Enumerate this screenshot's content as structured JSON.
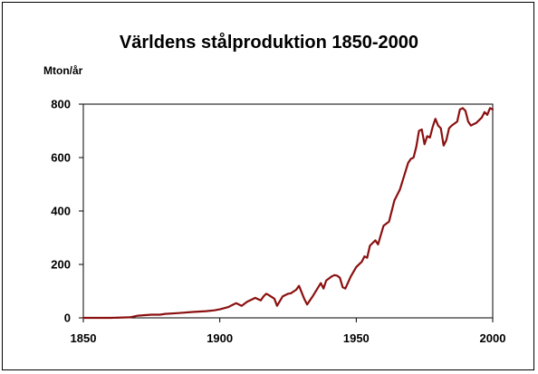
{
  "chart_data": {
    "type": "line",
    "title": "Världens stålproduktion 1850-2000",
    "xlabel": "",
    "ylabel": "Mton/år",
    "xlim": [
      1850,
      2000
    ],
    "ylim": [
      0,
      800
    ],
    "x_ticks": [
      "1850",
      "1900",
      "1950",
      "2000"
    ],
    "y_ticks": [
      "0",
      "200",
      "400",
      "600",
      "800"
    ],
    "grid": false,
    "legend": "none",
    "line_color": "#8b1010",
    "series": [
      {
        "x": [
          1850,
          1860,
          1867,
          1870,
          1872,
          1875,
          1878,
          1880,
          1885,
          1890,
          1895,
          1898,
          1900,
          1903,
          1905,
          1906,
          1908,
          1910,
          1912,
          1913,
          1915,
          1916,
          1917,
          1918,
          1920,
          1921,
          1923,
          1925,
          1926,
          1928,
          1929,
          1931,
          1932,
          1934,
          1937,
          1938,
          1939,
          1941,
          1942,
          1943,
          1944,
          1945,
          1946,
          1948,
          1950,
          1952,
          1953,
          1954,
          1955,
          1957,
          1958,
          1960,
          1962,
          1964,
          1966,
          1969,
          1970,
          1971,
          1972,
          1973,
          1974,
          1975,
          1976,
          1977,
          1978,
          1979,
          1980,
          1981,
          1982,
          1983,
          1984,
          1985,
          1987,
          1988,
          1989,
          1990,
          1991,
          1992,
          1993,
          1994,
          1996,
          1997,
          1998,
          1999,
          2000
        ],
        "y": [
          0,
          0,
          2,
          8,
          10,
          12,
          12,
          15,
          18,
          22,
          25,
          28,
          32,
          40,
          50,
          55,
          45,
          60,
          70,
          75,
          65,
          80,
          90,
          85,
          72,
          45,
          80,
          90,
          92,
          105,
          120,
          70,
          50,
          80,
          130,
          110,
          140,
          155,
          160,
          158,
          150,
          115,
          110,
          155,
          190,
          210,
          230,
          225,
          270,
          290,
          275,
          345,
          360,
          440,
          480,
          580,
          595,
          600,
          640,
          700,
          705,
          650,
          680,
          675,
          715,
          745,
          720,
          710,
          645,
          665,
          710,
          720,
          735,
          780,
          785,
          775,
          735,
          720,
          725,
          730,
          750,
          770,
          760,
          785,
          780
        ]
      }
    ]
  }
}
